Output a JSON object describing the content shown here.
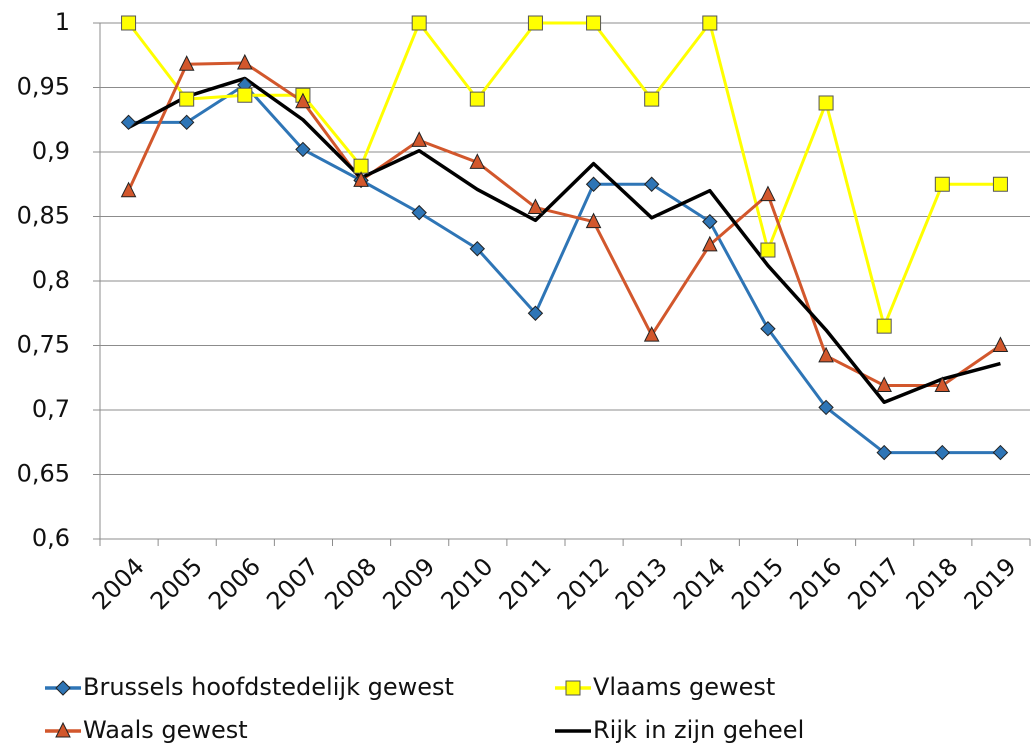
{
  "chart_data": {
    "type": "line",
    "categories": [
      "2004",
      "2005",
      "2006",
      "2007",
      "2008",
      "2009",
      "2010",
      "2011",
      "2012",
      "2013",
      "2014",
      "2015",
      "2016",
      "2017",
      "2018",
      "2019"
    ],
    "series": [
      {
        "name": "Brussels hoofdstedelijk gewest",
        "color": "#2e75b6",
        "marker": "diamond",
        "values": [
          0.923,
          0.923,
          0.952,
          0.902,
          0.878,
          0.853,
          0.825,
          0.775,
          0.875,
          0.875,
          0.846,
          0.763,
          0.702,
          0.667,
          0.667,
          0.667
        ]
      },
      {
        "name": "Vlaams gewest",
        "color": "#ffff00",
        "marker": "square",
        "values": [
          1,
          0.941,
          0.944,
          0.944,
          0.889,
          1,
          0.941,
          1,
          1,
          0.941,
          1,
          0.824,
          0.938,
          0.765,
          0.875,
          0.875
        ]
      },
      {
        "name": "Waals gewest",
        "color": "#d2572c",
        "marker": "triangle",
        "values": [
          0.87,
          0.968,
          0.969,
          0.939,
          0.878,
          0.909,
          0.892,
          0.857,
          0.846,
          0.758,
          0.828,
          0.867,
          0.742,
          0.719,
          0.719,
          0.75
        ]
      },
      {
        "name": "Rijk in zijn geheel",
        "color": "#000000",
        "marker": "none",
        "values": [
          0.919,
          0.943,
          0.957,
          0.925,
          0.88,
          0.901,
          0.871,
          0.847,
          0.891,
          0.849,
          0.87,
          0.812,
          0.762,
          0.706,
          0.724,
          0.736
        ]
      }
    ],
    "ylim": [
      0.6,
      1
    ],
    "yticks": [
      {
        "value": 0.6,
        "label": "0,6"
      },
      {
        "value": 0.65,
        "label": "0,65"
      },
      {
        "value": 0.7,
        "label": "0,7"
      },
      {
        "value": 0.75,
        "label": "0,75"
      },
      {
        "value": 0.8,
        "label": "0,8"
      },
      {
        "value": 0.85,
        "label": "0,85"
      },
      {
        "value": 0.9,
        "label": "0,9"
      },
      {
        "value": 0.95,
        "label": "0,95"
      },
      1
    ],
    "grid": true
  }
}
